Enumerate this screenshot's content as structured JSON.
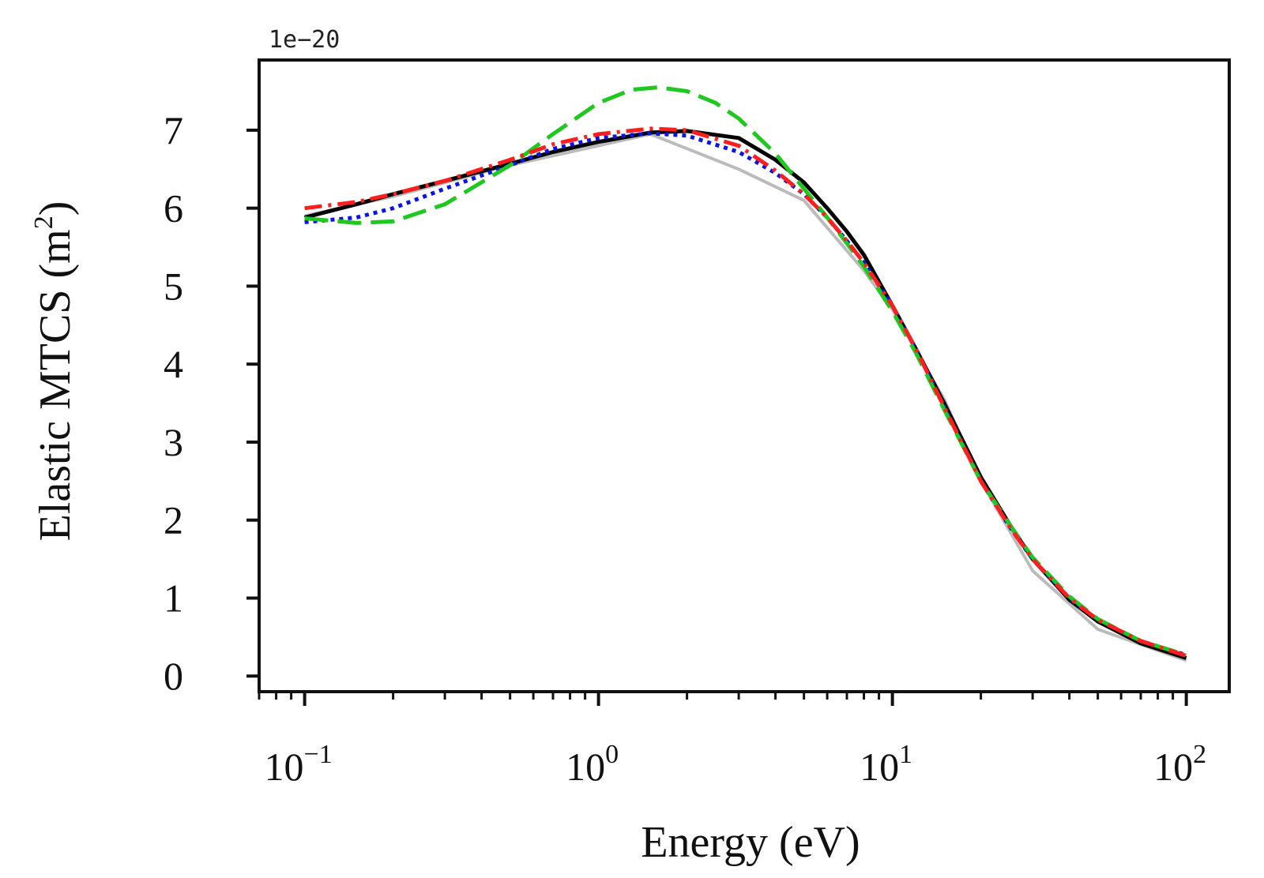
{
  "chart_data": {
    "type": "line",
    "title": "",
    "xlabel": "Energy (eV)",
    "ylabel": "Elastic MTCS (m",
    "ylabel_unit_sup": "2",
    "ylabel_close": ")",
    "xscale": "log",
    "xlim": [
      0.07,
      140
    ],
    "ylim": [
      -0.2,
      7.9
    ],
    "y_offset_label": "1e−20",
    "x_ticks": [
      {
        "value": 0.1,
        "base": "10",
        "exp": "−1"
      },
      {
        "value": 1,
        "base": "10",
        "exp": "0"
      },
      {
        "value": 10,
        "base": "10",
        "exp": "1"
      },
      {
        "value": 100,
        "base": "10",
        "exp": "2"
      }
    ],
    "y_ticks": [
      "0",
      "1",
      "2",
      "3",
      "4",
      "5",
      "6",
      "7"
    ],
    "grid": false,
    "legend": "none",
    "series": [
      {
        "name": "reference-gray",
        "color": "#bbbbbb",
        "style": "solid",
        "x": [
          0.1,
          0.2,
          0.5,
          1.0,
          1.5,
          3.0,
          5.0,
          8.0,
          10,
          15,
          20,
          30,
          50,
          100
        ],
        "y": [
          5.9,
          6.15,
          6.55,
          6.8,
          6.95,
          6.5,
          6.1,
          5.2,
          4.7,
          3.55,
          2.5,
          1.35,
          0.6,
          0.2
        ]
      },
      {
        "name": "black-solid",
        "color": "#000000",
        "style": "solid",
        "x": [
          0.1,
          0.15,
          0.2,
          0.3,
          0.5,
          0.7,
          1.0,
          1.5,
          2.0,
          3.0,
          4.0,
          5.0,
          6.0,
          7.0,
          8.0,
          10,
          12,
          15,
          20,
          25,
          30,
          40,
          50,
          70,
          100
        ],
        "y": [
          5.88,
          6.05,
          6.18,
          6.35,
          6.57,
          6.72,
          6.85,
          6.97,
          6.99,
          6.9,
          6.62,
          6.33,
          6.0,
          5.7,
          5.4,
          4.75,
          4.2,
          3.5,
          2.55,
          1.95,
          1.5,
          0.98,
          0.7,
          0.42,
          0.23
        ]
      },
      {
        "name": "blue-dotted",
        "color": "#0a14e6",
        "style": "dotted",
        "x": [
          0.1,
          0.15,
          0.2,
          0.3,
          0.5,
          0.7,
          1.0,
          1.5,
          2.0,
          3.0,
          4.0,
          5.0,
          6.0,
          7.0,
          8.0,
          10,
          12,
          15,
          20,
          25,
          30,
          40,
          50,
          70,
          100
        ],
        "y": [
          5.82,
          5.88,
          6.0,
          6.25,
          6.55,
          6.76,
          6.9,
          6.96,
          6.93,
          6.72,
          6.45,
          6.18,
          5.88,
          5.58,
          5.3,
          4.75,
          4.2,
          3.45,
          2.5,
          1.92,
          1.5,
          1.0,
          0.72,
          0.45,
          0.27
        ]
      },
      {
        "name": "green-dashed",
        "color": "#1ec81e",
        "style": "dashed",
        "x": [
          0.1,
          0.15,
          0.2,
          0.3,
          0.5,
          0.7,
          1.0,
          1.3,
          1.6,
          2.0,
          2.5,
          3.0,
          4.0,
          5.0,
          6.0,
          7.0,
          8.0,
          10,
          12,
          15,
          20,
          25,
          30,
          40,
          50,
          70,
          100
        ],
        "y": [
          5.87,
          5.81,
          5.83,
          6.05,
          6.55,
          6.95,
          7.35,
          7.52,
          7.55,
          7.5,
          7.35,
          7.15,
          6.7,
          6.25,
          5.88,
          5.55,
          5.25,
          4.68,
          4.15,
          3.42,
          2.5,
          1.95,
          1.52,
          1.02,
          0.73,
          0.45,
          0.27
        ]
      },
      {
        "name": "red-dashdot",
        "color": "#ff1e1e",
        "style": "dashdot",
        "x": [
          0.1,
          0.15,
          0.2,
          0.3,
          0.5,
          0.7,
          1.0,
          1.5,
          2.0,
          3.0,
          4.0,
          5.0,
          6.0,
          7.0,
          8.0,
          10,
          12,
          15,
          20,
          25,
          30,
          40,
          50,
          70,
          100
        ],
        "y": [
          6.0,
          6.08,
          6.18,
          6.35,
          6.62,
          6.82,
          6.95,
          7.02,
          7.0,
          6.8,
          6.48,
          6.18,
          5.88,
          5.58,
          5.3,
          4.75,
          4.2,
          3.45,
          2.5,
          1.92,
          1.5,
          1.0,
          0.72,
          0.45,
          0.26
        ]
      }
    ]
  }
}
